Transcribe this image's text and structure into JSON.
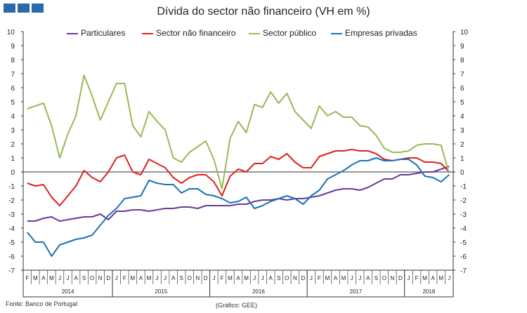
{
  "header": {
    "logo_blocks": [
      "logo-block",
      "logo-block",
      "logo-block"
    ],
    "logo_color": "#2a6aa8"
  },
  "footer": {
    "source": "Fonte: Banco de Portugal",
    "credit": "(Gráfico: GEE)"
  },
  "chart_data": {
    "type": "line",
    "title": "Dívida do sector não financeiro (VH em %)",
    "ylim": [
      -7,
      10
    ],
    "yticks": [
      -7,
      -6,
      -5,
      -4,
      -3,
      -2,
      -1,
      0,
      1,
      2,
      3,
      4,
      5,
      6,
      7,
      8,
      9,
      10
    ],
    "secondary_y": true,
    "grid": false,
    "legend_position": "top",
    "month_labels": [
      "F",
      "M",
      "A",
      "M",
      "J",
      "J",
      "A",
      "S",
      "O",
      "N",
      "D",
      "J",
      "F",
      "M",
      "A",
      "M",
      "J",
      "J",
      "A",
      "S",
      "O",
      "N",
      "D",
      "J",
      "F",
      "M",
      "A",
      "M",
      "J",
      "J",
      "A",
      "S",
      "O",
      "N",
      "D",
      "J",
      "F",
      "M",
      "A",
      "M",
      "J",
      "J",
      "A",
      "S",
      "O",
      "N",
      "D",
      "J",
      "F",
      "M",
      "A",
      "M",
      "J"
    ],
    "years": [
      {
        "label": "2014",
        "start": 0,
        "end": 10
      },
      {
        "label": "2015",
        "start": 11,
        "end": 22
      },
      {
        "label": "2016",
        "start": 23,
        "end": 34
      },
      {
        "label": "2017",
        "start": 35,
        "end": 46
      },
      {
        "label": "2018",
        "start": 47,
        "end": 52
      }
    ],
    "series": [
      {
        "name": "Particulares",
        "color": "#6a3a9a",
        "values": [
          -3.5,
          -3.5,
          -3.3,
          -3.2,
          -3.5,
          -3.4,
          -3.3,
          -3.2,
          -3.2,
          -3.0,
          -3.4,
          -2.8,
          -2.8,
          -2.7,
          -2.7,
          -2.8,
          -2.7,
          -2.6,
          -2.6,
          -2.5,
          -2.5,
          -2.6,
          -2.4,
          -2.4,
          -2.4,
          -2.4,
          -2.3,
          -2.3,
          -2.1,
          -2.0,
          -2.0,
          -1.9,
          -2.0,
          -1.9,
          -1.9,
          -1.8,
          -1.7,
          -1.5,
          -1.3,
          -1.2,
          -1.2,
          -1.3,
          -1.1,
          -0.8,
          -0.5,
          -0.5,
          -0.2,
          -0.2,
          -0.1,
          0.0,
          0.0,
          0.2,
          0.4
        ]
      },
      {
        "name": "Sector não financeiro",
        "color": "#e02020",
        "values": [
          -0.8,
          -1.0,
          -0.9,
          -1.8,
          -2.4,
          -1.7,
          -1.0,
          0.1,
          -0.4,
          -0.7,
          0.0,
          1.0,
          1.2,
          0.0,
          -0.2,
          0.9,
          0.6,
          0.3,
          -0.4,
          -0.8,
          -0.4,
          -0.2,
          -0.2,
          -0.7,
          -1.7,
          -0.3,
          0.2,
          0.0,
          0.6,
          0.6,
          1.1,
          0.9,
          1.3,
          0.7,
          0.3,
          0.3,
          1.1,
          1.3,
          1.5,
          1.5,
          1.6,
          1.5,
          1.5,
          1.3,
          0.9,
          0.8,
          0.9,
          1.0,
          1.0,
          0.7,
          0.7,
          0.6,
          0.0
        ]
      },
      {
        "name": "Sector público",
        "color": "#9ab85a",
        "values": [
          4.5,
          4.7,
          4.9,
          3.3,
          1.0,
          2.7,
          4.0,
          6.9,
          5.4,
          3.7,
          5.0,
          6.3,
          6.3,
          3.3,
          2.5,
          4.3,
          3.6,
          3.0,
          1.0,
          0.7,
          1.4,
          1.8,
          2.2,
          0.9,
          -1.2,
          2.4,
          3.6,
          2.8,
          4.8,
          4.6,
          5.7,
          4.9,
          5.6,
          4.3,
          3.7,
          3.1,
          4.7,
          4.0,
          4.3,
          3.9,
          3.9,
          3.3,
          3.2,
          2.6,
          1.7,
          1.4,
          1.4,
          1.5,
          1.9,
          2.0,
          2.0,
          1.9,
          -0.1
        ]
      },
      {
        "name": "Empresas privadas",
        "color": "#1a72b8",
        "values": [
          -4.3,
          -5.0,
          -5.0,
          -6.0,
          -5.2,
          -5.0,
          -4.8,
          -4.7,
          -4.5,
          -3.8,
          -3.1,
          -2.6,
          -1.9,
          -1.8,
          -1.7,
          -0.6,
          -0.8,
          -0.9,
          -0.9,
          -1.5,
          -1.2,
          -1.2,
          -1.6,
          -1.7,
          -1.9,
          -2.2,
          -2.1,
          -1.8,
          -2.6,
          -2.4,
          -2.1,
          -1.9,
          -1.7,
          -1.9,
          -2.3,
          -1.7,
          -1.3,
          -0.5,
          -0.2,
          0.1,
          0.5,
          0.8,
          0.8,
          1.0,
          0.8,
          0.8,
          0.9,
          0.9,
          0.5,
          -0.3,
          -0.4,
          -0.7,
          -0.2
        ]
      }
    ]
  }
}
